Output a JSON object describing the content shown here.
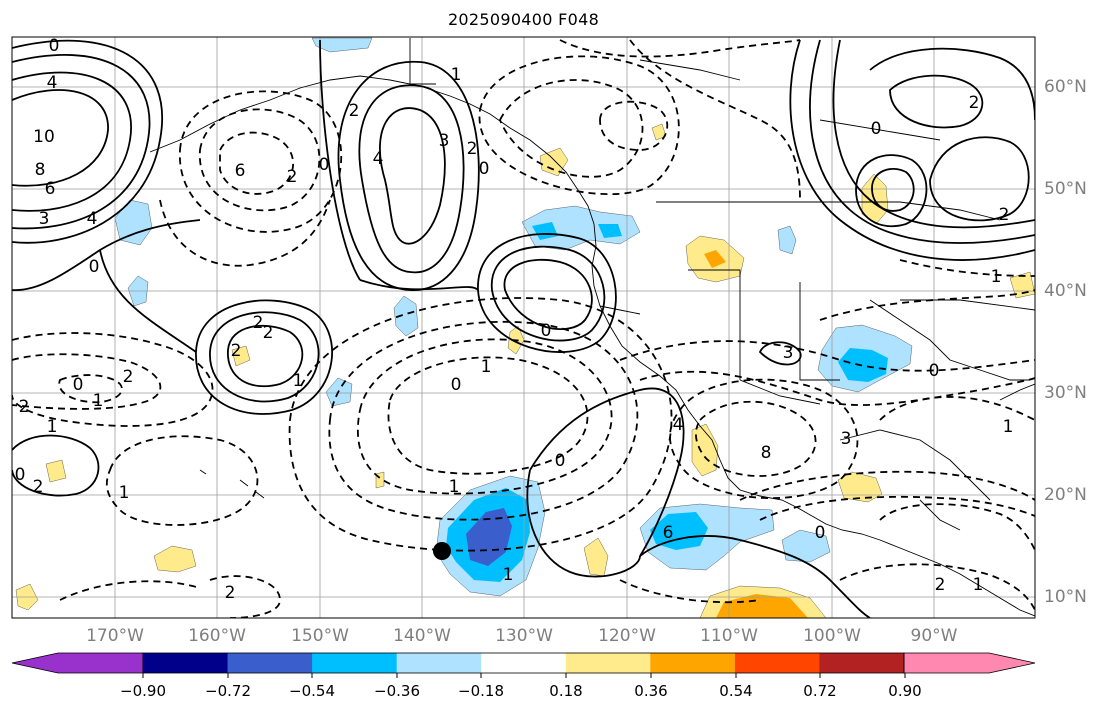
{
  "title": "2025090400 F048",
  "latitude_labels": [
    "60°N",
    "50°N",
    "40°N",
    "30°N",
    "20°N",
    "10°N"
  ],
  "longitude_labels": [
    "170°W",
    "160°W",
    "150°W",
    "140°W",
    "130°W",
    "120°W",
    "110°W",
    "100°W",
    "90°W"
  ],
  "colorbar": {
    "tick_labels": [
      "−0.90",
      "−0.72",
      "−0.54",
      "−0.36",
      "−0.18",
      "0.18",
      "0.36",
      "0.54",
      "0.72",
      "0.90"
    ],
    "colors": [
      "#9932cc",
      "#00008b",
      "#3a5fcd",
      "#00bfff",
      "#aee2ff",
      "#ffffff",
      "#ffeb8c",
      "#ffa500",
      "#ff4500",
      "#b22222",
      "#ff88b0"
    ]
  },
  "contour_labels": [
    "0",
    "4",
    "10",
    "8",
    "6",
    "3",
    "4",
    "6",
    "0",
    "0",
    "2",
    "4",
    "3",
    "2",
    "0",
    "1",
    "2",
    "2",
    "2",
    "2",
    "1",
    "2",
    "0",
    "1",
    "2",
    "1",
    "0",
    "2",
    "1",
    "2",
    "0",
    "1",
    "1",
    "0",
    "0",
    "1",
    "4",
    "6",
    "8",
    "3",
    "0",
    "2",
    "1",
    "3",
    "0",
    "1",
    "2",
    "0",
    "2",
    "1"
  ],
  "marker": "storm-center-dot"
}
